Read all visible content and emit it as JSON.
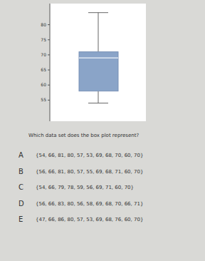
{
  "chart_data": {
    "type": "box",
    "min": 54,
    "q1": 58,
    "median": 69,
    "q3": 71,
    "max": 84,
    "color": "#8aa4c8",
    "ylim": [
      48,
      87
    ],
    "yticks": [
      55,
      60,
      65,
      70,
      75,
      80
    ]
  },
  "question": "Which data set does the box plot represent?",
  "choices": [
    {
      "letter": "A",
      "text": "{54, 66, 81, 80, 57, 53, 69, 68, 70, 60, 70}"
    },
    {
      "letter": "B",
      "text": "{56, 66, 81, 80, 57, 55, 69, 68, 71, 60, 70}"
    },
    {
      "letter": "C",
      "text": "{54, 66, 79, 78, 59, 56, 69, 71, 60, 70}"
    },
    {
      "letter": "D",
      "text": "{56, 66, 83, 80, 56, 58, 69, 68, 70, 66, 71}"
    },
    {
      "letter": "E",
      "text": "{47, 66, 86, 80, 57, 53, 69, 68, 76, 60, 70}"
    }
  ]
}
